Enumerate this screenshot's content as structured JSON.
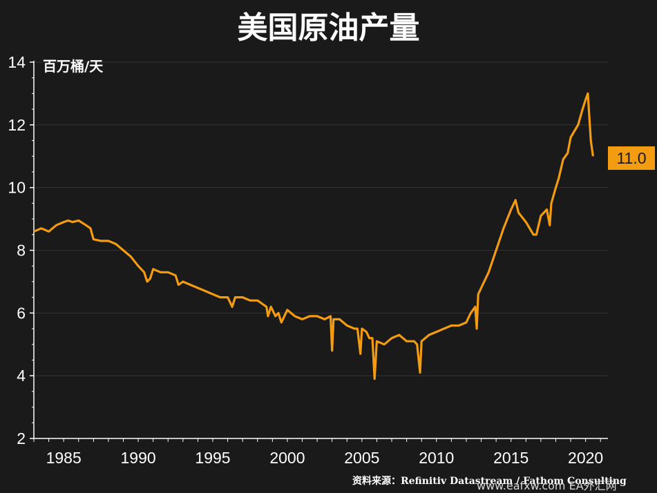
{
  "title": "美国原油产量",
  "source": "资料来源：Refinitiv Datastream / Fathom Consulting",
  "watermark": "www.eafxw.com  EA外汇网",
  "colors": {
    "background": "#1a1a1a",
    "line": "#f39c12",
    "text": "#ffffff",
    "axis": "#ffffff"
  },
  "chart_data": {
    "type": "line",
    "title": "美国原油产量",
    "ylabel": "百万桶/天",
    "ylim": [
      2,
      14
    ],
    "yticks": [
      "2",
      "4",
      "6",
      "8",
      "10",
      "12",
      "14"
    ],
    "xlim": [
      1983,
      2021.5
    ],
    "xticks": [
      "1985",
      "1990",
      "1995",
      "2000",
      "2005",
      "2010",
      "2015",
      "2020"
    ],
    "grid": "horizontal",
    "end_label": "11.0",
    "series": [
      {
        "x": [
          1983.0,
          1983.5,
          1984.0,
          1984.5,
          1985.0,
          1985.3,
          1985.6,
          1986.0,
          1986.5,
          1986.8,
          1987.0,
          1987.5,
          1988.0,
          1988.5,
          1989.0,
          1989.5,
          1990.0,
          1990.4,
          1990.6,
          1990.8,
          1991.0,
          1991.5,
          1992.0,
          1992.5,
          1992.7,
          1993.0,
          1993.5,
          1994.0,
          1994.5,
          1995.0,
          1995.5,
          1996.0,
          1996.3,
          1996.5,
          1997.0,
          1997.5,
          1998.0,
          1998.6,
          1998.7,
          1998.9,
          1999.2,
          1999.4,
          1999.6,
          2000.0,
          2000.5,
          2001.0,
          2001.5,
          2002.0,
          2002.5,
          2002.9,
          2003.0,
          2003.1,
          2003.5,
          2004.0,
          2004.5,
          2004.7,
          2004.9,
          2005.0,
          2005.3,
          2005.5,
          2005.7,
          2005.85,
          2006.0,
          2006.5,
          2007.0,
          2007.5,
          2008.0,
          2008.5,
          2008.7,
          2008.9,
          2009.0,
          2009.5,
          2010.0,
          2010.5,
          2011.0,
          2011.5,
          2012.0,
          2012.3,
          2012.6,
          2012.7,
          2012.8,
          2013.0,
          2013.5,
          2014.0,
          2014.5,
          2015.0,
          2015.3,
          2015.5,
          2016.0,
          2016.5,
          2016.7,
          2017.0,
          2017.4,
          2017.6,
          2017.7,
          2018.0,
          2018.2,
          2018.5,
          2018.8,
          2019.0,
          2019.5,
          2019.8,
          2020.0,
          2020.15,
          2020.35,
          2020.5
        ],
        "y": [
          8.6,
          8.7,
          8.6,
          8.8,
          8.9,
          8.95,
          8.9,
          8.95,
          8.8,
          8.7,
          8.35,
          8.3,
          8.3,
          8.2,
          8.0,
          7.8,
          7.5,
          7.3,
          7.0,
          7.1,
          7.4,
          7.3,
          7.3,
          7.2,
          6.9,
          7.0,
          6.9,
          6.8,
          6.7,
          6.6,
          6.5,
          6.5,
          6.2,
          6.5,
          6.5,
          6.4,
          6.4,
          6.2,
          5.9,
          6.2,
          5.9,
          6.0,
          5.7,
          6.1,
          5.9,
          5.8,
          5.9,
          5.9,
          5.8,
          5.9,
          4.8,
          5.8,
          5.8,
          5.6,
          5.5,
          5.5,
          4.7,
          5.5,
          5.4,
          5.2,
          5.2,
          3.9,
          5.1,
          5.0,
          5.2,
          5.3,
          5.1,
          5.1,
          5.0,
          4.1,
          5.1,
          5.3,
          5.4,
          5.5,
          5.6,
          5.6,
          5.7,
          6.0,
          6.2,
          5.5,
          6.6,
          6.8,
          7.3,
          8.0,
          8.7,
          9.3,
          9.6,
          9.2,
          8.9,
          8.5,
          8.5,
          9.1,
          9.3,
          8.8,
          9.5,
          10.0,
          10.3,
          10.9,
          11.1,
          11.6,
          12.0,
          12.5,
          12.8,
          13.0,
          11.5,
          11.0
        ]
      }
    ]
  }
}
